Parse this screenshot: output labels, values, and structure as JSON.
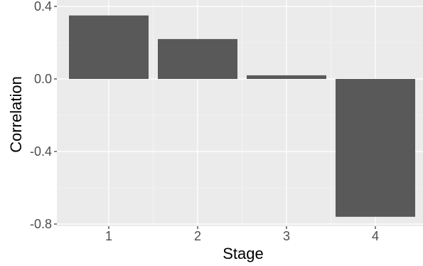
{
  "chart_data": {
    "type": "bar",
    "categories": [
      "1",
      "2",
      "3",
      "4"
    ],
    "values": [
      0.35,
      0.22,
      0.02,
      -0.76
    ],
    "xlabel": "Stage",
    "ylabel": "Correlation",
    "ylim": [
      -0.8,
      0.4
    ],
    "yticks": [
      0.4,
      0.0,
      -0.4,
      -0.8
    ],
    "ytick_labels": [
      "0.4",
      "0.0",
      "-0.4",
      "-0.8"
    ],
    "grid": true,
    "colors": {
      "panel_background": "#ebebeb",
      "grid_major": "#ffffff",
      "bar_fill": "#595959"
    }
  }
}
